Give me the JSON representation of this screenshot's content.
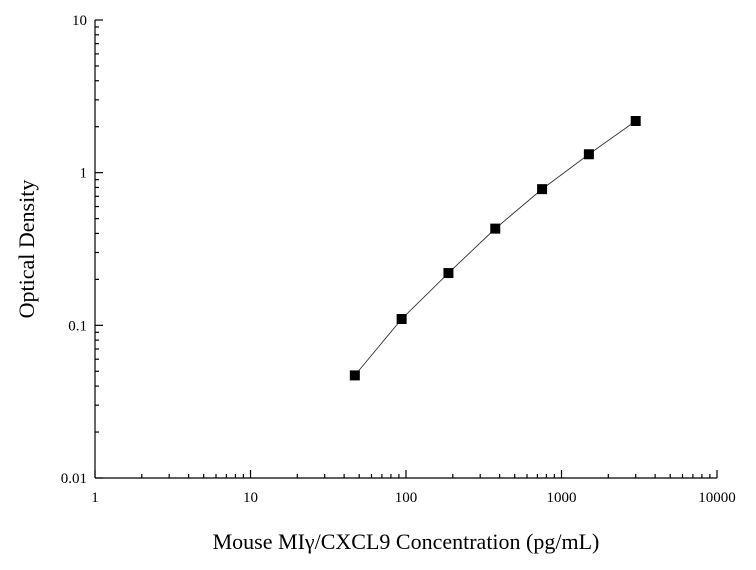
{
  "chart_data": {
    "type": "scatter",
    "title": "",
    "xlabel": "Mouse MIγ/CXCL9 Concentration (pg/mL)",
    "ylabel": "Optical Density",
    "xscale": "log",
    "yscale": "log",
    "xlim": [
      1,
      10000
    ],
    "ylim": [
      0.01,
      10
    ],
    "grid": false,
    "legend": "none",
    "x_ticks": [
      1,
      10,
      100,
      1000,
      10000
    ],
    "x_tick_labels": [
      "1",
      "10",
      "100",
      "1000",
      "10000"
    ],
    "y_ticks": [
      0.01,
      0.1,
      1,
      10
    ],
    "y_tick_labels": [
      "0.01",
      "0.1",
      "1",
      "10"
    ],
    "series": [
      {
        "x": [
          46.875,
          93.75,
          187.5,
          375,
          750,
          1500,
          3000
        ],
        "y": [
          0.047,
          0.11,
          0.22,
          0.43,
          0.78,
          1.32,
          2.18
        ],
        "marker": "square",
        "color": "#000000",
        "line": "connected"
      }
    ]
  }
}
